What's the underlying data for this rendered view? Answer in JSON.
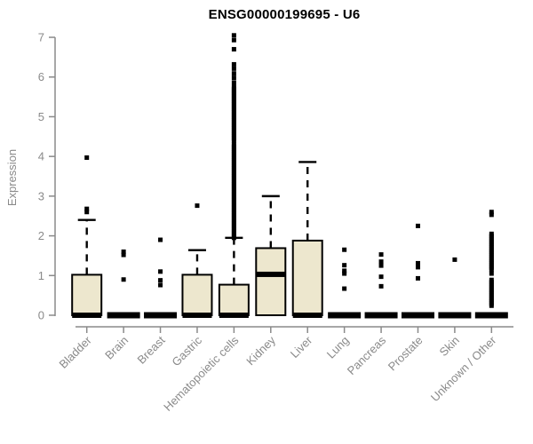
{
  "title": "ENSG00000199695 - U6",
  "chart_data": {
    "type": "boxplot",
    "title": "ENSG00000199695 - U6",
    "xlabel": "",
    "ylabel": "Expression",
    "ylim": [
      0,
      7
    ],
    "yticks": [
      0,
      1,
      2,
      3,
      4,
      5,
      6,
      7
    ],
    "grid": false,
    "legend": false,
    "categories": [
      "Bladder",
      "Brain",
      "Breast",
      "Gastric",
      "Hematopoietic cells",
      "Kidney",
      "Liver",
      "Lung",
      "Pancreas",
      "Prostate",
      "Skin",
      "Unknown / Other"
    ],
    "series": [
      {
        "name": "Bladder",
        "whisker_low": 0,
        "q1": 0,
        "median": 0,
        "q3": 1.02,
        "whisker_high": 2.4,
        "outliers": [
          2.6,
          2.68,
          3.97
        ]
      },
      {
        "name": "Brain",
        "whisker_low": 0,
        "q1": 0,
        "median": 0,
        "q3": 0,
        "whisker_high": 0,
        "outliers": [
          0.9,
          1.52,
          1.6
        ]
      },
      {
        "name": "Breast",
        "whisker_low": 0,
        "q1": 0,
        "median": 0,
        "q3": 0,
        "whisker_high": 0,
        "outliers": [
          0.76,
          0.88,
          1.1,
          1.9
        ]
      },
      {
        "name": "Gastric",
        "whisker_low": 0,
        "q1": 0,
        "median": 0,
        "q3": 1.02,
        "whisker_high": 1.64,
        "outliers": [
          2.76
        ]
      },
      {
        "name": "Hematopoietic cells",
        "whisker_low": 0,
        "q1": 0,
        "median": 0,
        "q3": 0.77,
        "whisker_high": 1.95,
        "outliers": [
          7.05,
          6.93,
          6.7,
          6.32,
          6.21,
          6.09,
          5.98,
          5.86,
          5.75,
          5.7,
          5.65,
          5.6,
          5.55,
          5.5,
          5.45,
          5.4,
          5.35,
          5.3,
          5.25,
          5.2,
          5.15,
          5.1,
          5.05,
          5.0,
          4.95,
          4.9,
          4.85,
          4.8,
          4.75,
          4.7,
          4.65,
          4.6,
          4.55,
          4.5,
          4.45,
          4.4,
          4.3,
          4.25,
          4.2,
          4.15,
          4.1,
          4.05,
          4.0,
          3.95,
          3.9,
          3.85,
          3.8,
          3.75,
          3.7,
          3.65,
          3.6,
          3.55,
          3.5,
          3.45,
          3.4,
          3.35,
          3.3,
          3.25,
          3.2,
          3.15,
          3.1,
          3.05,
          3.0,
          2.95,
          2.9,
          2.85,
          2.8,
          2.75,
          2.7,
          2.65,
          2.6,
          2.55,
          2.5,
          2.45,
          2.4,
          2.35,
          2.3,
          2.25,
          2.2,
          2.15,
          2.1,
          2.05,
          2.0,
          1.95
        ]
      },
      {
        "name": "Kidney",
        "whisker_low": 0,
        "q1": 0,
        "median": 1.03,
        "q3": 1.69,
        "whisker_high": 3.0,
        "outliers": []
      },
      {
        "name": "Liver",
        "whisker_low": 0,
        "q1": 0,
        "median": 0,
        "q3": 1.88,
        "whisker_high": 3.86,
        "outliers": []
      },
      {
        "name": "Lung",
        "whisker_low": 0,
        "q1": 0,
        "median": 0,
        "q3": 0,
        "whisker_high": 0,
        "outliers": [
          0.67,
          1.05,
          1.12,
          1.26,
          1.65
        ]
      },
      {
        "name": "Pancreas",
        "whisker_low": 0,
        "q1": 0,
        "median": 0,
        "q3": 0,
        "whisker_high": 0,
        "outliers": [
          0.73,
          0.97,
          1.25,
          1.35,
          1.53
        ]
      },
      {
        "name": "Prostate",
        "whisker_low": 0,
        "q1": 0,
        "median": 0,
        "q3": 0,
        "whisker_high": 0,
        "outliers": [
          0.93,
          1.21,
          1.31,
          2.25
        ]
      },
      {
        "name": "Skin",
        "whisker_low": 0,
        "q1": 0,
        "median": 0,
        "q3": 0,
        "whisker_high": 0,
        "outliers": [
          1.4
        ]
      },
      {
        "name": "Unknown / Other",
        "whisker_low": 0,
        "q1": 0,
        "median": 0,
        "q3": 0,
        "whisker_high": 0,
        "outliers": [
          2.6,
          2.53,
          2.05,
          2.0,
          1.95,
          1.9,
          1.85,
          1.8,
          1.75,
          1.7,
          1.65,
          1.6,
          1.55,
          1.5,
          1.45,
          1.4,
          1.35,
          1.3,
          1.25,
          1.2,
          1.15,
          1.05,
          0.89,
          0.84,
          0.79,
          0.74,
          0.69,
          0.64,
          0.59,
          0.54,
          0.49,
          0.44,
          0.39,
          0.34,
          0.29,
          0.24
        ]
      }
    ],
    "colors": {
      "background": "#ffffff",
      "box_fill": "#ede7ce",
      "box_border": "#000000",
      "median": "#000000",
      "whisker": "#000000",
      "outlier": "#000000",
      "axis": "#8a8a8a",
      "tick_label": "#8a8a8a",
      "title": "#000000"
    }
  }
}
